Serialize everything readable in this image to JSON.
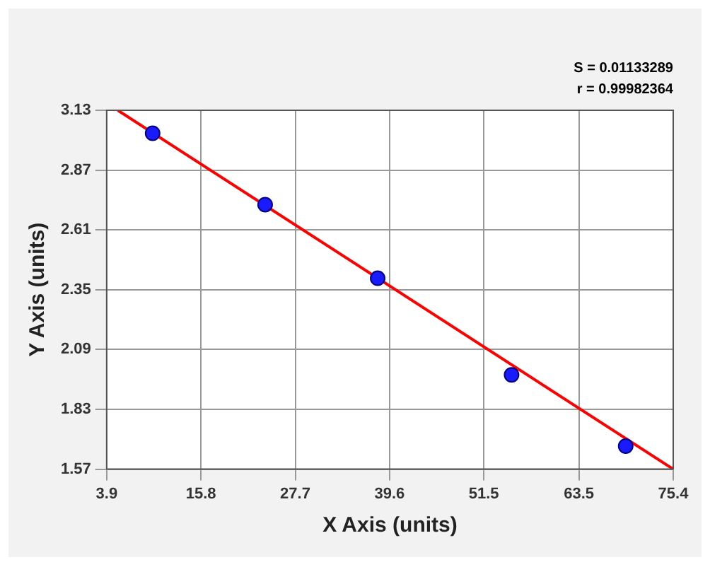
{
  "chart_data": {
    "type": "scatter",
    "xlabel": "X Axis (units)",
    "ylabel": "Y Axis (units)",
    "annotations": [
      "S = 0.01133289",
      "r = 0.99982364"
    ],
    "xlim": [
      3.9,
      75.4
    ],
    "xticks": [
      3.9,
      15.8,
      27.7,
      39.6,
      51.5,
      63.5,
      75.4
    ],
    "ylim": [
      1.57,
      3.13
    ],
    "yticks": [
      1.57,
      1.83,
      2.09,
      2.35,
      2.61,
      2.87,
      3.13
    ],
    "grid": true,
    "legend": false,
    "series": [
      {
        "type": "scatter",
        "color": "#1a1aff",
        "marker": "circle",
        "x": [
          9.7,
          23.9,
          38.1,
          55.0,
          69.4
        ],
        "values": [
          3.03,
          2.72,
          2.4,
          1.98,
          1.67
        ]
      },
      {
        "type": "line",
        "color": "#ff0000",
        "marker": "none",
        "line_style": "solid",
        "x": [
          5.3,
          75.4
        ],
        "values": [
          3.13,
          1.57
        ]
      }
    ]
  }
}
